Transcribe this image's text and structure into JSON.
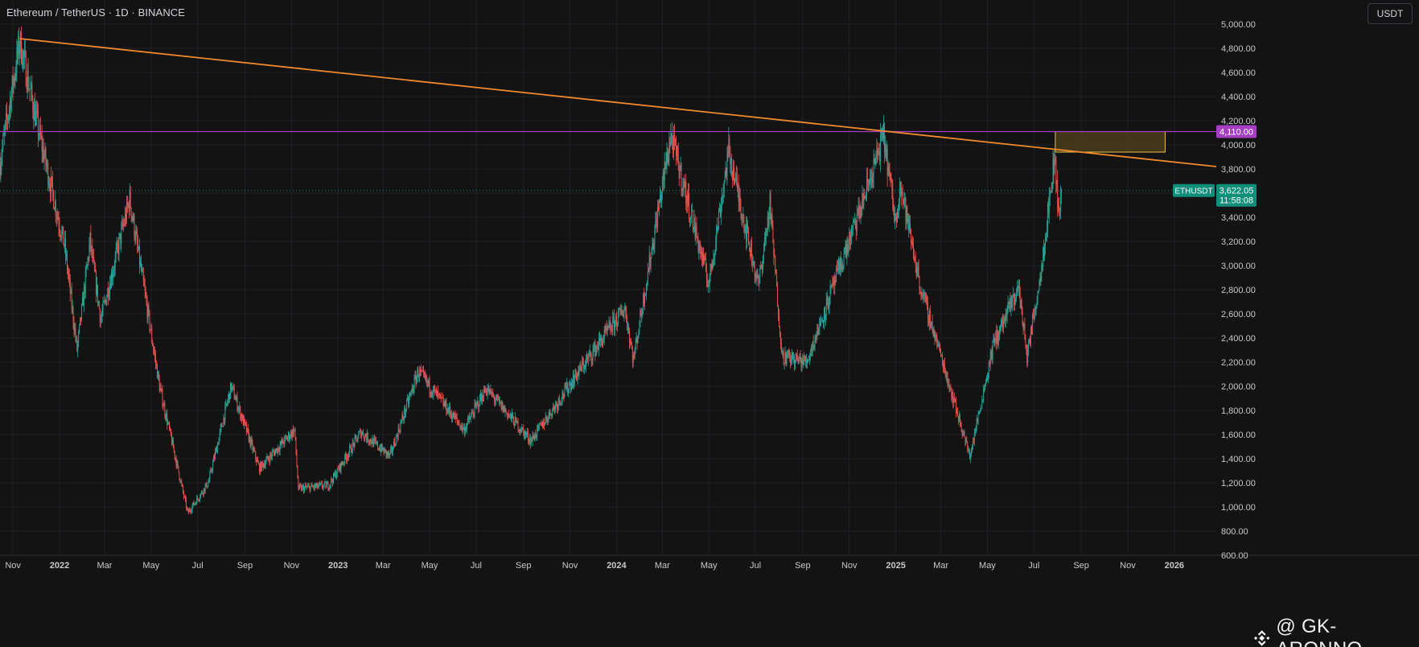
{
  "header": {
    "title": "Ethereum / TetherUS · 1D · BINANCE"
  },
  "toolbar": {
    "currency_label": "USDT"
  },
  "watermark": {
    "text": "@ GK-ARONNO"
  },
  "colors": {
    "background": "#131313",
    "grid": "#1e2029",
    "up": "#26a69a",
    "down": "#ef5350",
    "trendline": "#f0892c",
    "resistance": "#a63ec4",
    "zone_fill": "#4a3d1c",
    "zone_border": "#e7c04a",
    "price_label": "#0f8f7a",
    "axis_text": "#c8c8c8"
  },
  "chart_data": {
    "type": "candlestick",
    "title": "Ethereum / TetherUS · 1D · BINANCE",
    "ylim": [
      600,
      5200
    ],
    "y_scale": "linear",
    "grid": true,
    "y_ticks": [
      600,
      800,
      1000,
      1200,
      1400,
      1600,
      1800,
      2000,
      2200,
      2400,
      2600,
      2800,
      3000,
      3200,
      3400,
      3600,
      3800,
      4000,
      4200,
      4400,
      4600,
      4800,
      5000
    ],
    "y_tick_labels": [
      "600.00",
      "800.00",
      "1,000.00",
      "1,200.00",
      "1,400.00",
      "1,600.00",
      "1,800.00",
      "2,000.00",
      "2,200.00",
      "2,400.00",
      "2,600.00",
      "2,800.00",
      "3,000.00",
      "3,200.00",
      "3,400.00",
      "3,600.00",
      "3,800.00",
      "4,000.00",
      "4,200.00",
      "4,400.00",
      "4,600.00",
      "4,800.00",
      "5,000.00"
    ],
    "x_range": [
      "2021-10-15",
      "2026-02-25"
    ],
    "x_ticks": [
      "2021-11-01",
      "2022-01-01",
      "2022-03-01",
      "2022-05-01",
      "2022-07-01",
      "2022-09-01",
      "2022-11-01",
      "2023-01-01",
      "2023-03-01",
      "2023-05-01",
      "2023-07-01",
      "2023-09-01",
      "2023-11-01",
      "2024-01-01",
      "2024-03-01",
      "2024-05-01",
      "2024-07-01",
      "2024-09-01",
      "2024-11-01",
      "2025-01-01",
      "2025-03-01",
      "2025-05-01",
      "2025-07-01",
      "2025-09-01",
      "2025-11-01",
      "2026-01-01"
    ],
    "x_tick_labels": [
      "Nov",
      "2022",
      "Mar",
      "May",
      "Jul",
      "Sep",
      "Nov",
      "2023",
      "Mar",
      "May",
      "Jul",
      "Sep",
      "Nov",
      "2024",
      "Mar",
      "May",
      "Jul",
      "Sep",
      "Nov",
      "2025",
      "Mar",
      "May",
      "Jul",
      "Sep",
      "Nov",
      "2026"
    ],
    "x_bold_ticks": [
      "2022",
      "2023",
      "2024",
      "2025",
      "2026"
    ],
    "price_anchors": [
      [
        "2021-10-15",
        3850
      ],
      [
        "2021-11-10",
        4860
      ],
      [
        "2021-12-05",
        4100
      ],
      [
        "2022-01-08",
        3150
      ],
      [
        "2022-01-24",
        2300
      ],
      [
        "2022-02-10",
        3200
      ],
      [
        "2022-02-24",
        2550
      ],
      [
        "2022-04-03",
        3550
      ],
      [
        "2022-05-12",
        2000
      ],
      [
        "2022-06-18",
        950
      ],
      [
        "2022-07-15",
        1200
      ],
      [
        "2022-08-14",
        2000
      ],
      [
        "2022-09-20",
        1320
      ],
      [
        "2022-11-05",
        1640
      ],
      [
        "2022-11-10",
        1150
      ],
      [
        "2022-12-20",
        1180
      ],
      [
        "2023-01-31",
        1620
      ],
      [
        "2023-03-10",
        1420
      ],
      [
        "2023-04-16",
        2120
      ],
      [
        "2023-06-15",
        1640
      ],
      [
        "2023-07-14",
        1980
      ],
      [
        "2023-09-11",
        1550
      ],
      [
        "2023-11-10",
        2100
      ],
      [
        "2024-01-12",
        2650
      ],
      [
        "2024-01-23",
        2220
      ],
      [
        "2024-03-12",
        4080
      ],
      [
        "2024-05-01",
        2850
      ],
      [
        "2024-05-27",
        3950
      ],
      [
        "2024-07-05",
        2830
      ],
      [
        "2024-07-20",
        3500
      ],
      [
        "2024-08-05",
        2250
      ],
      [
        "2024-09-06",
        2200
      ],
      [
        "2024-10-01",
        2650
      ],
      [
        "2024-11-12",
        3400
      ],
      [
        "2024-12-16",
        4070
      ],
      [
        "2025-01-01",
        3350
      ],
      [
        "2025-01-06",
        3700
      ],
      [
        "2025-02-03",
        2800
      ],
      [
        "2025-02-27",
        2300
      ],
      [
        "2025-04-08",
        1420
      ],
      [
        "2025-05-09",
        2350
      ],
      [
        "2025-06-11",
        2820
      ],
      [
        "2025-06-22",
        2250
      ],
      [
        "2025-07-10",
        2950
      ],
      [
        "2025-07-28",
        3900
      ],
      [
        "2025-08-03",
        3400
      ],
      [
        "2025-08-06",
        3622
      ]
    ],
    "annotations": {
      "trendline": {
        "from": [
          "2021-11-10",
          4880
        ],
        "to": [
          "2026-02-25",
          3820
        ]
      },
      "resistance_line": {
        "price": 4110,
        "label": "4,110.00"
      },
      "zone": {
        "x": [
          "2025-07-29",
          "2025-12-20"
        ],
        "y": [
          3940,
          4110
        ]
      },
      "current_price": {
        "symbol": "ETHUSDT",
        "price": 3622.05,
        "label": "3,622.05",
        "countdown": "11:58:08"
      }
    }
  }
}
